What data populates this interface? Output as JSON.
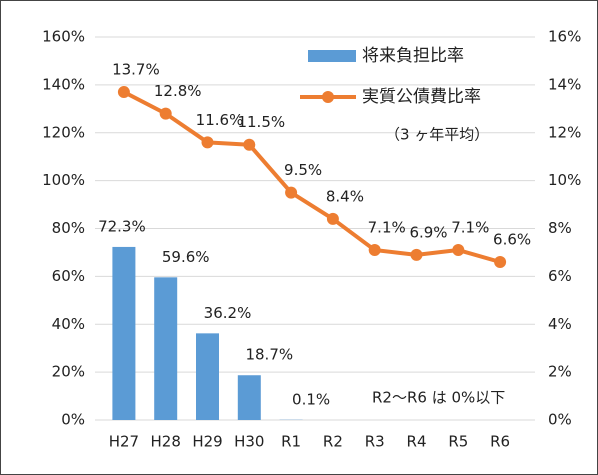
{
  "chart_data": {
    "type": "bar-line",
    "categories": [
      "H27",
      "H28",
      "H29",
      "H30",
      "R1",
      "R2",
      "R3",
      "R4",
      "R5",
      "R6"
    ],
    "series": [
      {
        "name": "将来負担比率",
        "color": "#5b9bd5",
        "type": "bar",
        "values": [
          72.3,
          59.6,
          36.2,
          18.7,
          0.1,
          null,
          null,
          null,
          null,
          null
        ],
        "value_labels": [
          "72.3%",
          "59.6%",
          "36.2%",
          "18.7%",
          "0.1%",
          null,
          null,
          null,
          null,
          null
        ]
      },
      {
        "name": "実質公債費比率",
        "color": "#ed7d31",
        "type": "line",
        "axis": "y2",
        "values": [
          13.7,
          12.8,
          11.6,
          11.5,
          9.5,
          8.4,
          7.1,
          6.9,
          7.1,
          6.6
        ],
        "value_labels": [
          "13.7%",
          "12.8%",
          "11.6%",
          "11.5%",
          "9.5%",
          "8.4%",
          "7.1%",
          "6.9%",
          "7.1%",
          "6.6%"
        ]
      }
    ],
    "ylim": [
      0,
      160
    ],
    "yticks": [
      {
        "value": 0,
        "label": "0%"
      },
      {
        "value": 20,
        "label": "20%"
      },
      {
        "value": 40,
        "label": "40%"
      },
      {
        "value": 60,
        "label": "60%"
      },
      {
        "value": 80,
        "label": "80%"
      },
      {
        "value": 100,
        "label": "100%"
      },
      {
        "value": 120,
        "label": "120%"
      },
      {
        "value": 140,
        "label": "140%"
      },
      {
        "value": 160,
        "label": "160%"
      }
    ],
    "y2lim": [
      0,
      16
    ],
    "y2ticks": [
      {
        "value": 0,
        "label": "0%"
      },
      {
        "value": 2,
        "label": "2%"
      },
      {
        "value": 4,
        "label": "4%"
      },
      {
        "value": 6,
        "label": "6%"
      },
      {
        "value": 8,
        "label": "8%"
      },
      {
        "value": 10,
        "label": "10%"
      },
      {
        "value": 12,
        "label": "12%"
      },
      {
        "value": 14,
        "label": "14%"
      },
      {
        "value": 16,
        "label": "16%"
      }
    ],
    "grid": true,
    "legend": "upper right",
    "annotations": [
      "（3 ヶ年平均）",
      "R2～R6 は 0%以下"
    ]
  }
}
